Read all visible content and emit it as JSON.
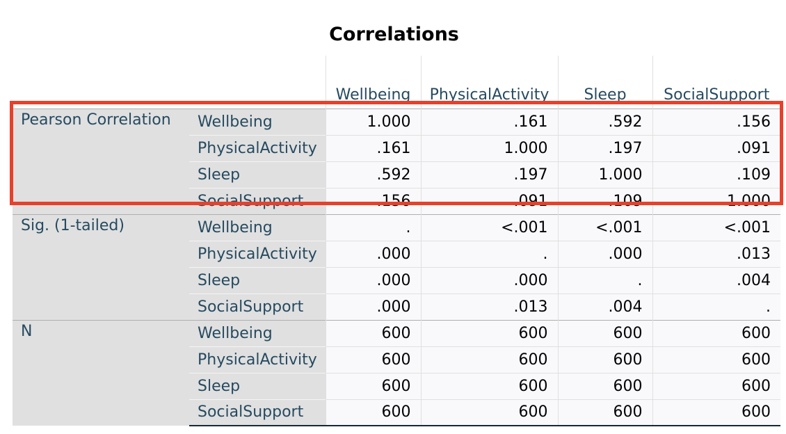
{
  "title": "Correlations",
  "columns": [
    "Wellbeing",
    "PhysicalActivity",
    "Sleep",
    "SocialSupport"
  ],
  "groups": [
    {
      "label": "Pearson Correlation",
      "rows": [
        {
          "var": "Wellbeing",
          "values": [
            "1.000",
            ".161",
            ".592",
            ".156"
          ]
        },
        {
          "var": "PhysicalActivity",
          "values": [
            ".161",
            "1.000",
            ".197",
            ".091"
          ]
        },
        {
          "var": "Sleep",
          "values": [
            ".592",
            ".197",
            "1.000",
            ".109"
          ]
        },
        {
          "var": "SocialSupport",
          "values": [
            ".156",
            ".091",
            ".109",
            "1.000"
          ]
        }
      ]
    },
    {
      "label": "Sig. (1-tailed)",
      "rows": [
        {
          "var": "Wellbeing",
          "values": [
            ".",
            "<.001",
            "<.001",
            "<.001"
          ]
        },
        {
          "var": "PhysicalActivity",
          "values": [
            ".000",
            ".",
            ".000",
            ".013"
          ]
        },
        {
          "var": "Sleep",
          "values": [
            ".000",
            ".000",
            ".",
            ".004"
          ]
        },
        {
          "var": "SocialSupport",
          "values": [
            ".000",
            ".013",
            ".004",
            "."
          ]
        }
      ]
    },
    {
      "label": "N",
      "rows": [
        {
          "var": "Wellbeing",
          "values": [
            "600",
            "600",
            "600",
            "600"
          ]
        },
        {
          "var": "PhysicalActivity",
          "values": [
            "600",
            "600",
            "600",
            "600"
          ]
        },
        {
          "var": "Sleep",
          "values": [
            "600",
            "600",
            "600",
            "600"
          ]
        },
        {
          "var": "SocialSupport",
          "values": [
            "600",
            "600",
            "600",
            "600"
          ]
        }
      ]
    }
  ],
  "highlight_color": "#e8402a"
}
